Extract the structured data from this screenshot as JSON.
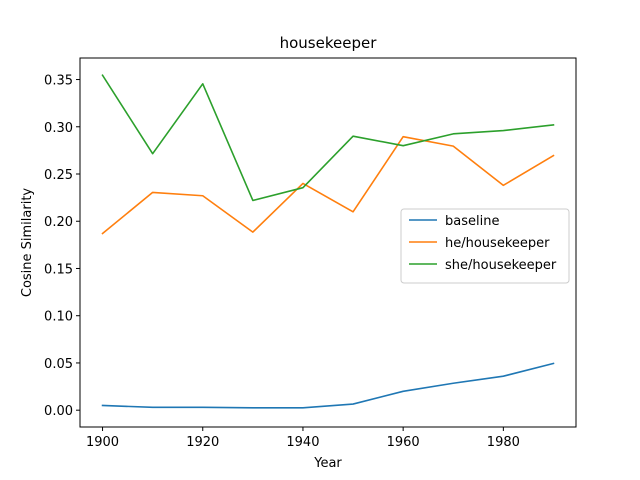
{
  "chart_data": {
    "type": "line",
    "title": "housekeeper",
    "xlabel": "Year",
    "ylabel": "Cosine Similarity",
    "x": [
      1900,
      1910,
      1920,
      1930,
      1940,
      1950,
      1960,
      1970,
      1980,
      1990
    ],
    "xlim": [
      1895.5,
      1994.5
    ],
    "ylim": [
      -0.0178,
      0.3728
    ],
    "xticks": [
      1900,
      1920,
      1940,
      1960,
      1980
    ],
    "xtick_labels": [
      "1900",
      "1920",
      "1940",
      "1960",
      "1980"
    ],
    "yticks": [
      0.0,
      0.05,
      0.1,
      0.15,
      0.2,
      0.25,
      0.3,
      0.35
    ],
    "ytick_labels": [
      "0.00",
      "0.05",
      "0.10",
      "0.15",
      "0.20",
      "0.25",
      "0.30",
      "0.35"
    ],
    "grid": false,
    "legend_position": "center-right",
    "series": [
      {
        "name": "baseline",
        "color": "#1f77b4",
        "values": [
          0.005,
          0.003,
          0.003,
          0.0025,
          0.0025,
          0.0065,
          0.02,
          0.0285,
          0.036,
          0.0495
        ]
      },
      {
        "name": "he/housekeeper",
        "color": "#ff7f0e",
        "values": [
          0.187,
          0.2305,
          0.227,
          0.1885,
          0.24,
          0.21,
          0.2895,
          0.2795,
          0.238,
          0.2695
        ]
      },
      {
        "name": "she/housekeeper",
        "color": "#2ca02c",
        "values": [
          0.3545,
          0.2715,
          0.3455,
          0.222,
          0.2355,
          0.29,
          0.28,
          0.2925,
          0.296,
          0.302
        ]
      }
    ]
  }
}
